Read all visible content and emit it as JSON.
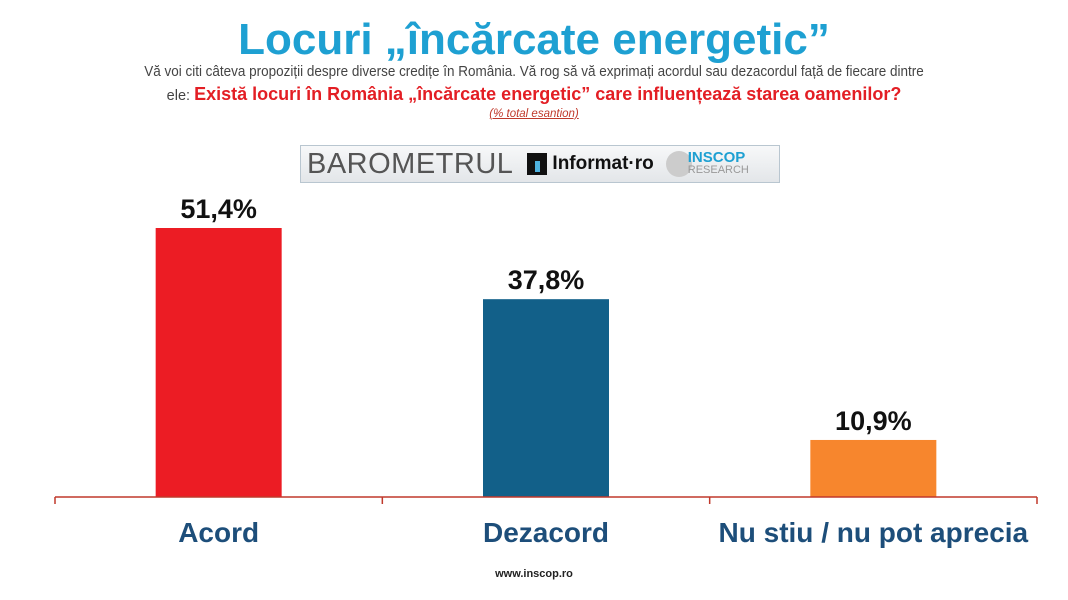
{
  "header": {
    "title": "Locuri „încărcate energetic”",
    "subtitle_line1": "Vă voi citi câteva propoziții despre diverse credițe în România. Vă rog să vă exprimați acordul sau dezacordul față de fiecare dintre",
    "subtitle_prefix": "ele:",
    "question": "Există locuri în România „încărcate energetic” care influențează starea oamenilor?",
    "note": "(% total esantion)"
  },
  "logo": {
    "barometer": "BAROMETRUL",
    "informat": "Informat·ro",
    "inscop": "INSCOP",
    "research": "RESEARCH"
  },
  "chart_data": {
    "type": "bar",
    "categories": [
      "Acord",
      "Dezacord",
      "Nu stiu / nu pot aprecia"
    ],
    "values": [
      51.4,
      37.8,
      10.9
    ],
    "labels": [
      "51,4%",
      "37,8%",
      "10,9%"
    ],
    "colors": [
      "#ec1c24",
      "#126089",
      "#f7862d"
    ],
    "ylim": [
      0,
      55
    ],
    "grid": false
  },
  "footer": {
    "url": "www.inscop.ro"
  }
}
